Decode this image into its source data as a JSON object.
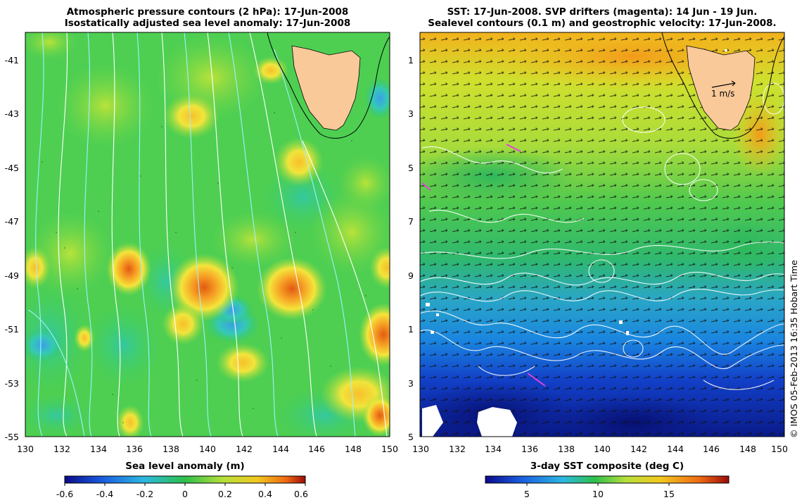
{
  "left_panel": {
    "title_line1": "Atmospheric pressure contours (2 hPa): 17-Jun-2008",
    "title_line2": "Isostatically adjusted sea level anomaly: 17-Jun-2008",
    "colorbar_label": "Sea level anomaly (m)",
    "colorbar_ticks": [
      "-0.6",
      "-0.4",
      "-0.2",
      "0",
      "0.2",
      "0.4",
      "0.6"
    ]
  },
  "right_panel": {
    "title_line1": "SST: 17-Jun-2008. SVP drifters (magenta): 14 Jun - 19 Jun.",
    "title_line2": "Sealevel contours (0.1 m) and geostrophic velocity: 17-Jun-2008.",
    "colorbar_label": "3-day SST composite (deg C)",
    "colorbar_ticks": [
      "5",
      "10",
      "15"
    ],
    "scale_arrow_label": "1 m/s"
  },
  "axes": {
    "lat_ticks": [
      "-41",
      "-43",
      "-45",
      "-47",
      "-49",
      "-51",
      "-53",
      "-55"
    ],
    "lon_ticks": [
      "130",
      "132",
      "134",
      "136",
      "138",
      "140",
      "142",
      "144",
      "146",
      "148",
      "150"
    ]
  },
  "credit": "© IMOS 05-Feb-2013 16:35 Hobart Time",
  "colors": {
    "land": "#f9c99a",
    "pressure_contour": "#e8f8ff",
    "sealevel_contour": "#ffffff",
    "drifter": "#e040e0"
  }
}
